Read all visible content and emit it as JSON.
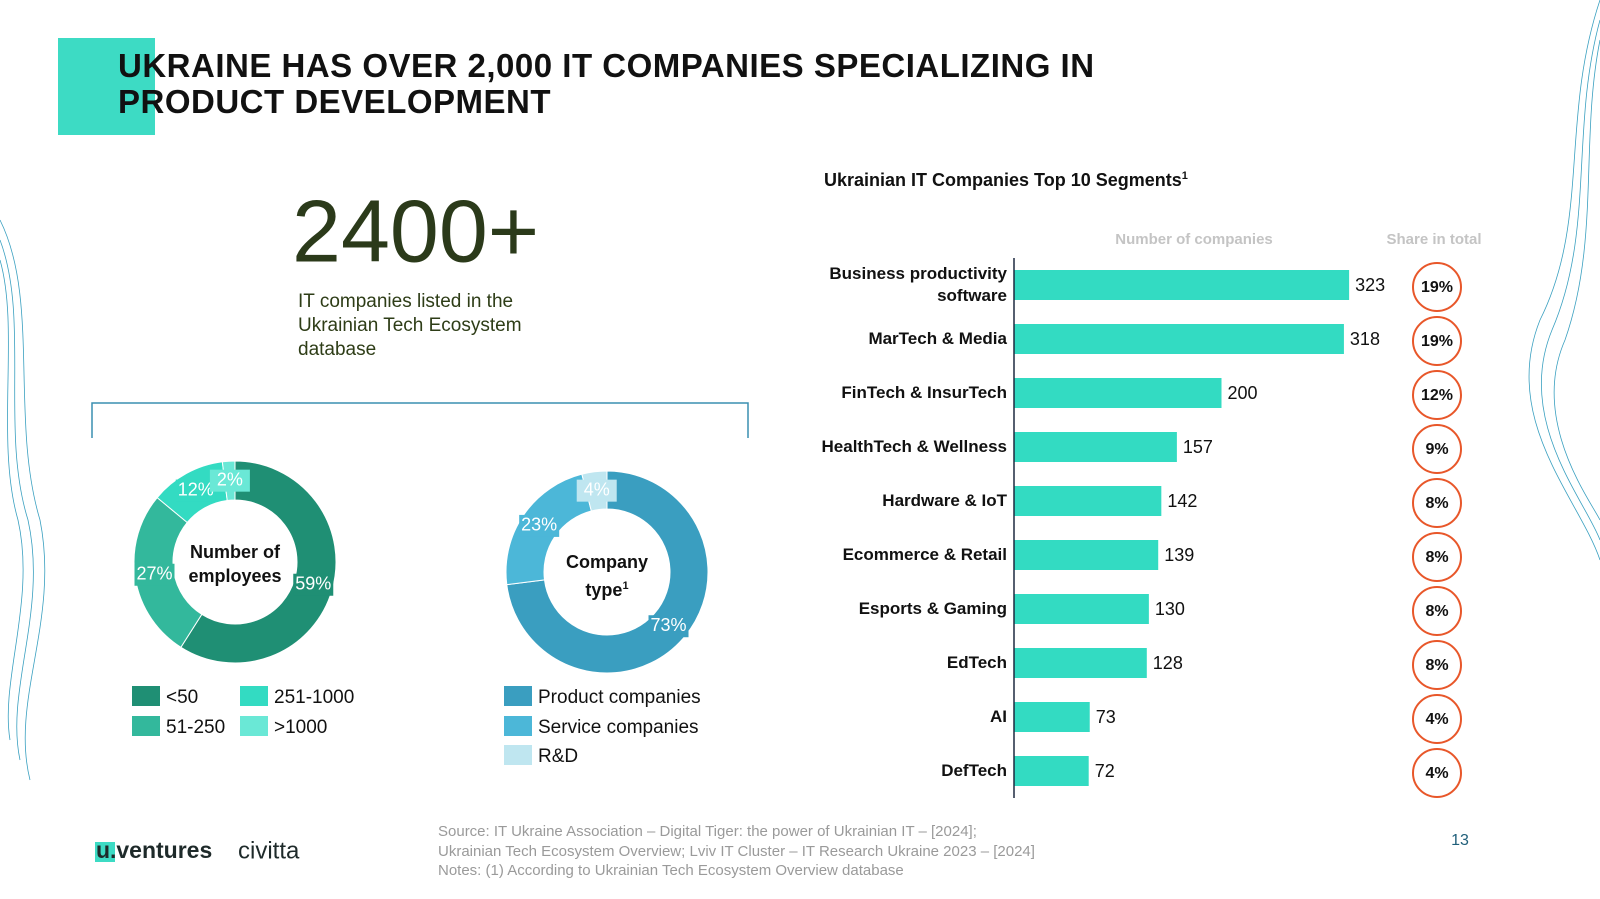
{
  "header": {
    "title": "UKRAINE HAS OVER 2,000 IT COMPANIES SPECIALIZING IN PRODUCT DEVELOPMENT"
  },
  "highlight": {
    "number": "2400+",
    "text": "IT companies listed in the Ukrainian Tech Ecosystem database"
  },
  "chart_data": [
    {
      "type": "donut",
      "center_label": "Number of employees",
      "categories": [
        "<50",
        "51-250",
        "251-1000",
        ">1000"
      ],
      "values": [
        59,
        27,
        12,
        2
      ],
      "value_labels": [
        "59%",
        "27%",
        "12%",
        "2%"
      ],
      "colors": [
        "#1f8f74",
        "#33b89c",
        "#33dbc2",
        "#6ae8d6"
      ]
    },
    {
      "type": "donut",
      "center_label": "Company type",
      "center_label_note": "1",
      "categories": [
        "Product companies",
        "Service companies",
        "R&D"
      ],
      "values": [
        73,
        23,
        4
      ],
      "value_labels": [
        "73%",
        "23%",
        "4%"
      ],
      "colors": [
        "#3a9ec0",
        "#4cb7d8",
        "#bfe6f0"
      ]
    },
    {
      "type": "hbar",
      "title": "Ukrainian IT Companies Top 10 Segments",
      "title_note": "1",
      "value_name": "Number of companies",
      "categories": [
        "Business productivity software",
        "MarTech & Media",
        "FinTech & InsurTech",
        "HealthTech & Wellness",
        "Hardware & IoT",
        "Ecommerce & Retail",
        "Esports & Gaming",
        "EdTech",
        "AI",
        "DefTech"
      ],
      "values": [
        323,
        318,
        200,
        157,
        142,
        139,
        130,
        128,
        73,
        72
      ],
      "color": "#33dbc2",
      "xlim": [
        0,
        400
      ],
      "share": {
        "name": "Share in total",
        "values": [
          19,
          19,
          12,
          9,
          8,
          8,
          8,
          8,
          4,
          4
        ],
        "value_labels": [
          "19%",
          "19%",
          "12%",
          "9%",
          "8%",
          "8%",
          "8%",
          "8%",
          "4%",
          "4%"
        ],
        "color": "#e8572a"
      }
    }
  ],
  "footer": {
    "logo_mark": "u",
    "logo_rest": ".ventures",
    "partner": "civitta",
    "source": [
      "Source: IT Ukraine Association – Digital Tiger: the power of Ukrainian IT – [2024];",
      "Ukrainian Tech Ecosystem Overview; Lviv IT Cluster – IT Research Ukraine 2023 – [2024]",
      "Notes: (1) According to Ukrainian Tech Ecosystem Overview database"
    ],
    "page": "13"
  }
}
